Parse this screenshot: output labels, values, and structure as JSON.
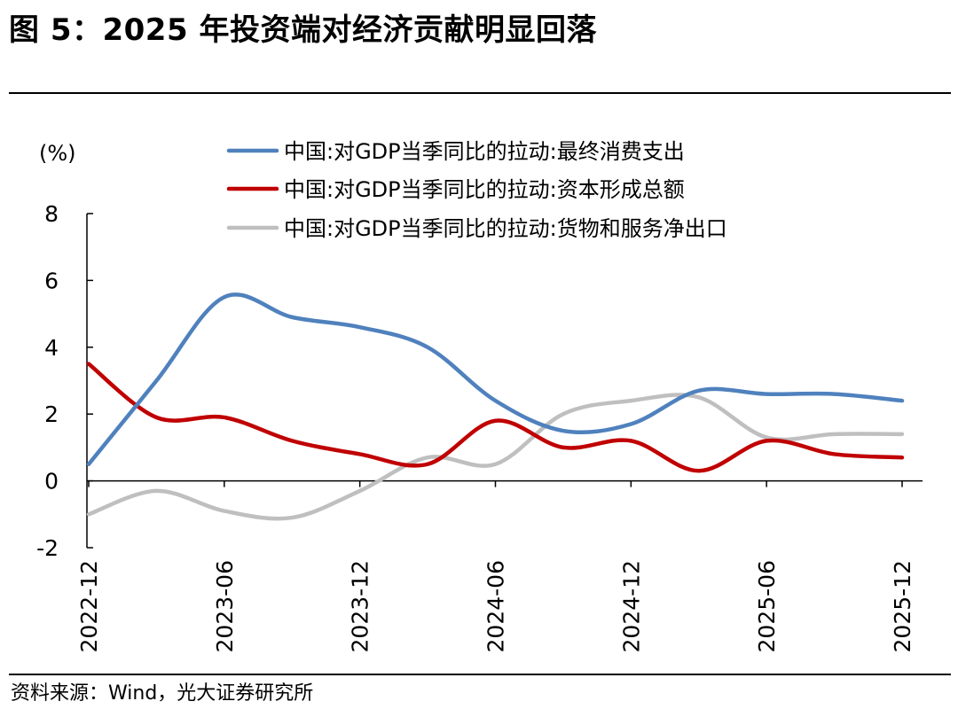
{
  "figure": {
    "title": "图 5：2025 年投资端对经济贡献明显回落",
    "source": "资料来源：Wind，光大证券研究所"
  },
  "chart_data": {
    "type": "line",
    "title": "图 5：2025 年投资端对经济贡献明显回落",
    "ylabel": "(%)",
    "xlabel": "",
    "ylim": [
      -2,
      8
    ],
    "yticks": [
      -2,
      0,
      2,
      4,
      6,
      8
    ],
    "x": [
      "2022-12",
      "2023-03",
      "2023-06",
      "2023-09",
      "2023-12",
      "2024-03",
      "2024-06",
      "2024-09",
      "2024-12",
      "2025-03",
      "2025-06",
      "2025-09",
      "2025-12"
    ],
    "xtick_labels": [
      "2022-12",
      "2023-06",
      "2023-12",
      "2024-06",
      "2024-12",
      "2025-06",
      "2025-12"
    ],
    "legend_position": "top",
    "grid": false,
    "series": [
      {
        "name": "中国:对GDP当季同比的拉动:最终消费支出",
        "color": "#4F81BD",
        "values": [
          0.5,
          3.0,
          5.5,
          4.9,
          4.6,
          4.0,
          2.4,
          1.5,
          1.7,
          2.7,
          2.6,
          2.6,
          2.4
        ]
      },
      {
        "name": "中国:对GDP当季同比的拉动:资本形成总额",
        "color": "#C00000",
        "values": [
          3.5,
          1.9,
          1.9,
          1.2,
          0.8,
          0.5,
          1.8,
          1.0,
          1.2,
          0.3,
          1.2,
          0.8,
          0.7
        ]
      },
      {
        "name": "中国:对GDP当季同比的拉动:货物和服务净出口",
        "color": "#BFBFBF",
        "values": [
          -1.0,
          -0.3,
          -0.9,
          -1.1,
          -0.3,
          0.7,
          0.5,
          2.0,
          2.4,
          2.5,
          1.3,
          1.4,
          1.4
        ]
      }
    ]
  }
}
